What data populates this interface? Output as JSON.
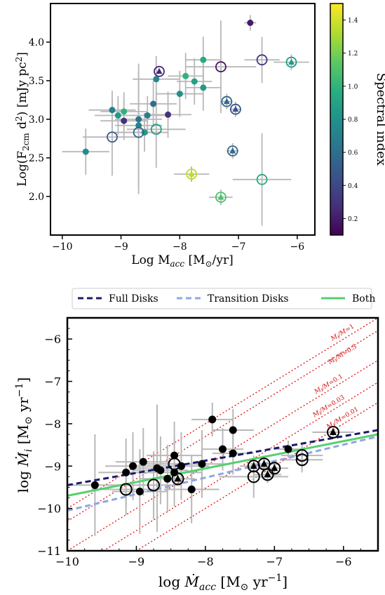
{
  "chart_data": [
    {
      "type": "scatter",
      "title": "",
      "xlabel": "Log M",
      "xlabel_sub": "acc",
      "xlabel_unit": "[M",
      "xlabel_unit_sym": "⊙",
      "xlabel_unit_end": "/yr]",
      "ylabel_pre": "Log(F",
      "ylabel_sub": "2cm",
      "ylabel_mid": " d",
      "ylabel_sup": "2",
      "ylabel_post": ") [mJy pc",
      "ylabel_sup2": "2",
      "ylabel_end": "]",
      "xlim": [
        -10.2,
        -5.7
      ],
      "ylim": [
        1.5,
        4.5
      ],
      "x_ticks": [
        -10,
        -9,
        -8,
        -7,
        -6
      ],
      "x_tick_labels": [
        "−10",
        "−9",
        "−8",
        "−7",
        "−6"
      ],
      "y_ticks": [
        2.0,
        2.5,
        3.0,
        3.5,
        4.0
      ],
      "y_tick_labels": [
        "2.0",
        "2.5",
        "3.0",
        "3.5",
        "4.0"
      ],
      "colorbar": {
        "label": "Spectral index",
        "range": [
          0.1,
          1.5
        ],
        "colormap": "viridis",
        "ticks": [
          0.2,
          0.4,
          0.6,
          0.8,
          1.0,
          1.2,
          1.4
        ],
        "tick_labels": [
          "0.2",
          "0.4",
          "0.6",
          "0.8",
          "1.0",
          "1.2",
          "1.4"
        ]
      },
      "points": [
        {
          "x": -9.6,
          "y": 2.58,
          "c": 0.78,
          "m": "dot",
          "xe": 0.4,
          "ye": 0.3
        },
        {
          "x": -9.15,
          "y": 3.12,
          "c": 0.7,
          "m": "dot",
          "xe": 0.4,
          "ye": 0.25
        },
        {
          "x": -9.05,
          "y": 3.05,
          "c": 0.85,
          "m": "dot",
          "xe": 0.4,
          "ye": 0.25
        },
        {
          "x": -8.95,
          "y": 3.1,
          "c": 1.0,
          "m": "dot",
          "xe": 0.4,
          "ye": 0.25
        },
        {
          "x": -8.95,
          "y": 2.98,
          "c": 0.3,
          "m": "dot",
          "xe": 0.4,
          "ye": 0.25
        },
        {
          "x": -8.7,
          "y": 3.0,
          "c": 0.65,
          "m": "dot",
          "xe": 0.4,
          "ye": 0.25
        },
        {
          "x": -8.7,
          "y": 2.92,
          "c": 0.72,
          "m": "dot",
          "xe": 0.4,
          "ye": 0.8
        },
        {
          "x": -8.6,
          "y": 2.83,
          "c": 0.85,
          "m": "dot",
          "xe": 0.4,
          "ye": 0.25
        },
        {
          "x": -8.55,
          "y": 3.05,
          "c": 0.7,
          "m": "dot",
          "xe": 0.4,
          "ye": 0.25
        },
        {
          "x": -8.45,
          "y": 3.2,
          "c": 0.6,
          "m": "dot",
          "xe": 0.4,
          "ye": 0.3
        },
        {
          "x": -8.4,
          "y": 3.52,
          "c": 0.75,
          "m": "dot",
          "xe": 0.4,
          "ye": 0.3
        },
        {
          "x": -8.2,
          "y": 3.06,
          "c": 0.3,
          "m": "dot",
          "xe": 0.4,
          "ye": 0.3
        },
        {
          "x": -8.0,
          "y": 3.33,
          "c": 0.8,
          "m": "dot",
          "xe": 0.4,
          "ye": 0.3
        },
        {
          "x": -7.9,
          "y": 3.56,
          "c": 1.0,
          "m": "dot",
          "xe": 0.3,
          "ye": 0.3
        },
        {
          "x": -7.75,
          "y": 3.49,
          "c": 0.9,
          "m": "dot",
          "xe": 0.3,
          "ye": 0.3
        },
        {
          "x": -7.6,
          "y": 3.77,
          "c": 0.95,
          "m": "dot",
          "xe": 0.3,
          "ye": 0.3
        },
        {
          "x": -7.6,
          "y": 3.41,
          "c": 0.85,
          "m": "dot",
          "xe": 0.3,
          "ye": 0.3
        },
        {
          "x": -6.8,
          "y": 4.25,
          "c": 0.2,
          "m": "dot",
          "xe": 0.1,
          "ye": 0.1
        },
        {
          "x": -9.15,
          "y": 2.77,
          "c": 0.5,
          "m": "ring",
          "xe": 0.5,
          "ye": 0.5
        },
        {
          "x": -8.7,
          "y": 2.83,
          "c": 0.55,
          "m": "ring",
          "xe": 0.4,
          "ye": 0.8
        },
        {
          "x": -8.4,
          "y": 2.87,
          "c": 0.88,
          "m": "ring",
          "xe": 0.5,
          "ye": 0.5
        },
        {
          "x": -8.35,
          "y": 3.62,
          "c": 0.25,
          "m": "ring_tri",
          "xe": 0.0,
          "ye": 0.0
        },
        {
          "x": -7.3,
          "y": 3.68,
          "c": 0.18,
          "m": "ring",
          "xe": 0.6,
          "ye": 0.6
        },
        {
          "x": -7.2,
          "y": 3.23,
          "c": 0.55,
          "m": "ring_tri",
          "xe": 0.1,
          "ye": 0.1
        },
        {
          "x": -7.05,
          "y": 3.13,
          "c": 0.45,
          "m": "ring_tri",
          "xe": 0.1,
          "ye": 0.1
        },
        {
          "x": -7.1,
          "y": 2.59,
          "c": 0.58,
          "m": "ring_tri",
          "xe": 0.1,
          "ye": 0.1
        },
        {
          "x": -6.6,
          "y": 3.77,
          "c": 0.3,
          "m": "ring",
          "xe": 0.3,
          "ye": 0.3
        },
        {
          "x": -6.1,
          "y": 3.74,
          "c": 0.85,
          "m": "ring_tri",
          "xe": 0.3,
          "ye": 0.1
        },
        {
          "x": -7.8,
          "y": 2.29,
          "c": 1.35,
          "m": "ring_tri",
          "xe": 0.3,
          "ye": 0.1
        },
        {
          "x": -7.3,
          "y": 1.99,
          "c": 1.1,
          "m": "ring_tri",
          "xe": 0.2,
          "ye": 0.1
        },
        {
          "x": -6.6,
          "y": 2.22,
          "c": 0.95,
          "m": "ring",
          "xe": 0.5,
          "ye": 0.6
        }
      ]
    },
    {
      "type": "scatter",
      "title": "",
      "xlabel_pre": "log ",
      "xlabel_var": "Ṁ",
      "xlabel_sub": "acc",
      "xlabel_unit": " [M",
      "xlabel_unit_sym": "⊙",
      "xlabel_unit_end": " yr",
      "xlabel_sup": "−1",
      "xlabel_end": "]",
      "ylabel_pre": "log ",
      "ylabel_var": "Ṁ",
      "ylabel_sub": "i",
      "ylabel_unit": " [M",
      "ylabel_unit_sym": "⊙",
      "ylabel_unit_end": " yr",
      "ylabel_sup": "−1",
      "ylabel_end": "]",
      "xlim": [
        -10,
        -5.5
      ],
      "ylim": [
        -11,
        -5.5
      ],
      "x_ticks": [
        -10,
        -9,
        -8,
        -7,
        -6
      ],
      "x_tick_labels": [
        "−10",
        "−9",
        "−8",
        "−7",
        "−6"
      ],
      "y_ticks": [
        -11,
        -10,
        -9,
        -8,
        -7,
        -6
      ],
      "y_tick_labels": [
        "−11",
        "−10",
        "−9",
        "−8",
        "−7",
        "−6"
      ],
      "legend": {
        "placement": "top",
        "entries": [
          {
            "label": "Full Disks",
            "color": "#1b1b6b",
            "dash": "8,5"
          },
          {
            "label": "Transition Disks",
            "color": "#8fa6e3",
            "dash": "8,5"
          },
          {
            "label": "Both",
            "color": "#55d06e",
            "dash": ""
          }
        ]
      },
      "fit_lines": [
        {
          "name": "Full Disks",
          "x": [
            -10,
            -5.5
          ],
          "y": [
            -9.45,
            -8.15
          ]
        },
        {
          "name": "Transition Disks",
          "x": [
            -10,
            -5.5
          ],
          "y": [
            -10.05,
            -8.3
          ]
        },
        {
          "name": "Both",
          "x": [
            -10,
            -5.5
          ],
          "y": [
            -9.7,
            -8.25
          ]
        }
      ],
      "ratio_lines": [
        {
          "label_pre": "M",
          "label_mid": "/M",
          "label_post": "=1",
          "ratio": 0
        },
        {
          "label_pre": "M",
          "label_mid": "/M",
          "label_post": "=0.5",
          "ratio": -0.301
        },
        {
          "label_pre": "M",
          "label_mid": "/M",
          "label_post": "=0.1",
          "ratio": -1
        },
        {
          "label_pre": "M",
          "label_mid": "/M",
          "label_post": "=0.03",
          "ratio": -1.523
        },
        {
          "label_pre": "M",
          "label_mid": "/M",
          "label_post": "=0.01",
          "ratio": -2
        }
      ],
      "points": [
        {
          "x": -9.6,
          "y": -9.45,
          "m": "dot",
          "xe": 0.4,
          "ye": 1.2
        },
        {
          "x": -9.15,
          "y": -9.15,
          "m": "dot",
          "xe": 0.4,
          "ye": 0.8
        },
        {
          "x": -9.05,
          "y": -9.0,
          "m": "dot",
          "xe": 0.4,
          "ye": 0.8
        },
        {
          "x": -8.9,
          "y": -8.9,
          "m": "dot",
          "xe": 0.4,
          "ye": 0.8
        },
        {
          "x": -8.95,
          "y": -9.6,
          "m": "dot",
          "xe": 0.4,
          "ye": 1.0
        },
        {
          "x": -8.7,
          "y": -9.05,
          "m": "dot",
          "xe": 0.4,
          "ye": 1.5
        },
        {
          "x": -8.65,
          "y": -9.1,
          "m": "dot",
          "xe": 0.4,
          "ye": 0.8
        },
        {
          "x": -8.55,
          "y": -9.3,
          "m": "dot",
          "xe": 0.4,
          "ye": 0.8
        },
        {
          "x": -8.45,
          "y": -9.15,
          "m": "dot",
          "xe": 0.4,
          "ye": 0.8
        },
        {
          "x": -8.45,
          "y": -8.75,
          "m": "dot",
          "xe": 0.4,
          "ye": 0.8
        },
        {
          "x": -8.35,
          "y": -9.0,
          "m": "dot",
          "xe": 0.4,
          "ye": 0.8
        },
        {
          "x": -8.2,
          "y": -9.55,
          "m": "dot",
          "xe": 0.4,
          "ye": 0.8
        },
        {
          "x": -8.05,
          "y": -8.95,
          "m": "dot",
          "xe": 0.4,
          "ye": 0.8
        },
        {
          "x": -7.9,
          "y": -7.9,
          "m": "dot",
          "xe": 0.3,
          "ye": 0.4
        },
        {
          "x": -7.75,
          "y": -8.6,
          "m": "dot",
          "xe": 0.3,
          "ye": 0.5
        },
        {
          "x": -7.6,
          "y": -8.15,
          "m": "dot",
          "xe": 0.3,
          "ye": 0.5
        },
        {
          "x": -7.6,
          "y": -8.7,
          "m": "dot",
          "xe": 0.3,
          "ye": 0.5
        },
        {
          "x": -6.8,
          "y": -8.6,
          "m": "dot",
          "xe": 0.2,
          "ye": 0.2
        },
        {
          "x": -9.15,
          "y": -9.55,
          "m": "ring",
          "xe": 0.5,
          "ye": 0.6
        },
        {
          "x": -8.75,
          "y": -9.45,
          "m": "ring",
          "xe": 0.4,
          "ye": 0.8
        },
        {
          "x": -8.45,
          "y": -8.95,
          "m": "ring",
          "xe": 0.5,
          "ye": 0.6
        },
        {
          "x": -8.4,
          "y": -9.3,
          "m": "ring_tri",
          "xe": 0.1,
          "ye": 0.1
        },
        {
          "x": -7.3,
          "y": -9.0,
          "m": "ring_tri",
          "xe": 0.2,
          "ye": 0.2
        },
        {
          "x": -7.15,
          "y": -8.95,
          "m": "ring_tri",
          "xe": 0.2,
          "ye": 0.2
        },
        {
          "x": -7.1,
          "y": -9.2,
          "m": "ring_tri",
          "xe": 0.2,
          "ye": 0.2
        },
        {
          "x": -7.3,
          "y": -9.25,
          "m": "ring",
          "xe": 0.5,
          "ye": 0.5
        },
        {
          "x": -7.0,
          "y": -9.05,
          "m": "ring_tri",
          "xe": 0.2,
          "ye": 0.2
        },
        {
          "x": -6.6,
          "y": -8.75,
          "m": "ring",
          "xe": 0.3,
          "ye": 0.3
        },
        {
          "x": -6.6,
          "y": -8.85,
          "m": "ring",
          "xe": 0.3,
          "ye": 0.3
        },
        {
          "x": -6.15,
          "y": -8.2,
          "m": "ring_tri",
          "xe": 0.3,
          "ye": 0.1
        }
      ]
    }
  ]
}
